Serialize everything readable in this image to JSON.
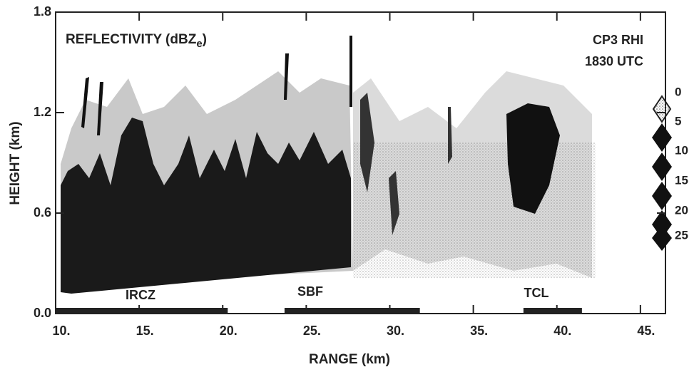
{
  "chart_data": {
    "type": "rhi",
    "title": {
      "text": "REFLECTIVITY (dBZ",
      "sub": "e",
      "tail": ")"
    },
    "annotations": [
      "CP3 RHI",
      "1830 UTC"
    ],
    "x_label": "RANGE (km)",
    "y_label": "HEIGHT (km)",
    "xlim": [
      10,
      46.5
    ],
    "ylim": [
      0,
      1.8
    ],
    "xticks": [
      {
        "value": 10,
        "label": "10."
      },
      {
        "value": 15,
        "label": "15."
      },
      {
        "value": 20,
        "label": "20."
      },
      {
        "value": 25,
        "label": "25."
      },
      {
        "value": 30,
        "label": "30."
      },
      {
        "value": 35,
        "label": "35."
      },
      {
        "value": 40,
        "label": "40."
      },
      {
        "value": 45,
        "label": "45."
      }
    ],
    "yticks": [
      {
        "value": 0,
        "label": "0.0"
      },
      0.6,
      1.2,
      1.8
    ],
    "legend": {
      "levels": [
        0,
        5,
        10,
        15,
        20,
        25
      ]
    },
    "regions": [
      {
        "label": "IRCZ",
        "start": 10,
        "end": 20.3
      },
      {
        "label": "SBF",
        "start": 23.7,
        "end": 31.8
      },
      {
        "label": "TCL",
        "start": 38,
        "end": 41.5
      }
    ]
  }
}
